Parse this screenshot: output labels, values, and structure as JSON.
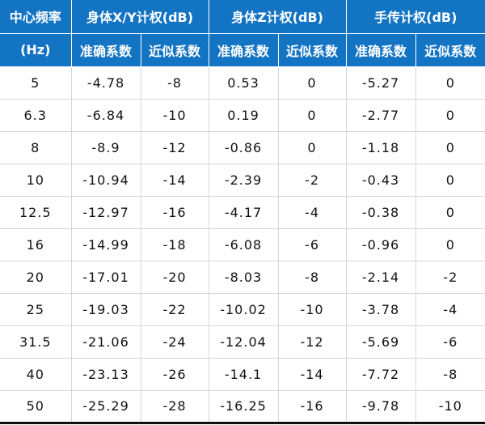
{
  "header": {
    "freq_title": "中心频率",
    "freq_unit": "(Hz)",
    "group_xy": "身体X/Y计权(dB)",
    "group_z": "身体Z计权(dB)",
    "group_hand": "手传计权(dB)",
    "exact": "准确系数",
    "approx": "近似系数"
  },
  "rows": [
    [
      "5",
      "-4.78",
      "-8",
      "0.53",
      "0",
      "-5.27",
      "0"
    ],
    [
      "6.3",
      "-6.84",
      "-10",
      "0.19",
      "0",
      "-2.77",
      "0"
    ],
    [
      "8",
      "-8.9",
      "-12",
      "-0.86",
      "0",
      "-1.18",
      "0"
    ],
    [
      "10",
      "-10.94",
      "-14",
      "-2.39",
      "-2",
      "-0.43",
      "0"
    ],
    [
      "12.5",
      "-12.97",
      "-16",
      "-4.17",
      "-4",
      "-0.38",
      "0"
    ],
    [
      "16",
      "-14.99",
      "-18",
      "-6.08",
      "-6",
      "-0.96",
      "0"
    ],
    [
      "20",
      "-17.01",
      "-20",
      "-8.03",
      "-8",
      "-2.14",
      "-2"
    ],
    [
      "25",
      "-19.03",
      "-22",
      "-10.02",
      "-10",
      "-3.78",
      "-4"
    ],
    [
      "31.5",
      "-21.06",
      "-24",
      "-12.04",
      "-12",
      "-5.69",
      "-6"
    ],
    [
      "40",
      "-23.13",
      "-26",
      "-14.1",
      "-14",
      "-7.72",
      "-8"
    ],
    [
      "50",
      "-25.29",
      "-28",
      "-16.25",
      "-16",
      "-9.78",
      "-10"
    ]
  ],
  "colors": {
    "header_bg": "#1474c4",
    "header_text": "#ffffff",
    "grid": "#d6d6d6"
  }
}
